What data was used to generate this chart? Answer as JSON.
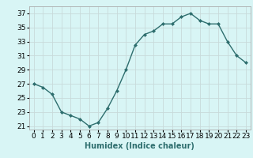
{
  "x": [
    0,
    1,
    2,
    3,
    4,
    5,
    6,
    7,
    8,
    9,
    10,
    11,
    12,
    13,
    14,
    15,
    16,
    17,
    18,
    19,
    20,
    21,
    22,
    23
  ],
  "y": [
    27,
    26.5,
    25.5,
    23,
    22.5,
    22,
    21,
    21.5,
    23.5,
    26,
    29,
    32.5,
    34,
    34.5,
    35.5,
    35.5,
    36.5,
    37,
    36,
    35.5,
    35.5,
    33,
    31,
    30
  ],
  "line_color": "#2e6e6e",
  "marker": "D",
  "marker_size": 2,
  "bg_color": "#d8f5f5",
  "grid_color": "#c8dada",
  "xlabel": "Humidex (Indice chaleur)",
  "xlim": [
    -0.5,
    23.5
  ],
  "ylim": [
    20.5,
    38
  ],
  "yticks": [
    21,
    23,
    25,
    27,
    29,
    31,
    33,
    35,
    37
  ],
  "xtick_labels": [
    "0",
    "1",
    "2",
    "3",
    "4",
    "5",
    "6",
    "7",
    "8",
    "9",
    "10",
    "11",
    "12",
    "13",
    "14",
    "15",
    "16",
    "17",
    "18",
    "19",
    "20",
    "21",
    "22",
    "23"
  ],
  "xlabel_fontsize": 7,
  "tick_fontsize": 6.5
}
